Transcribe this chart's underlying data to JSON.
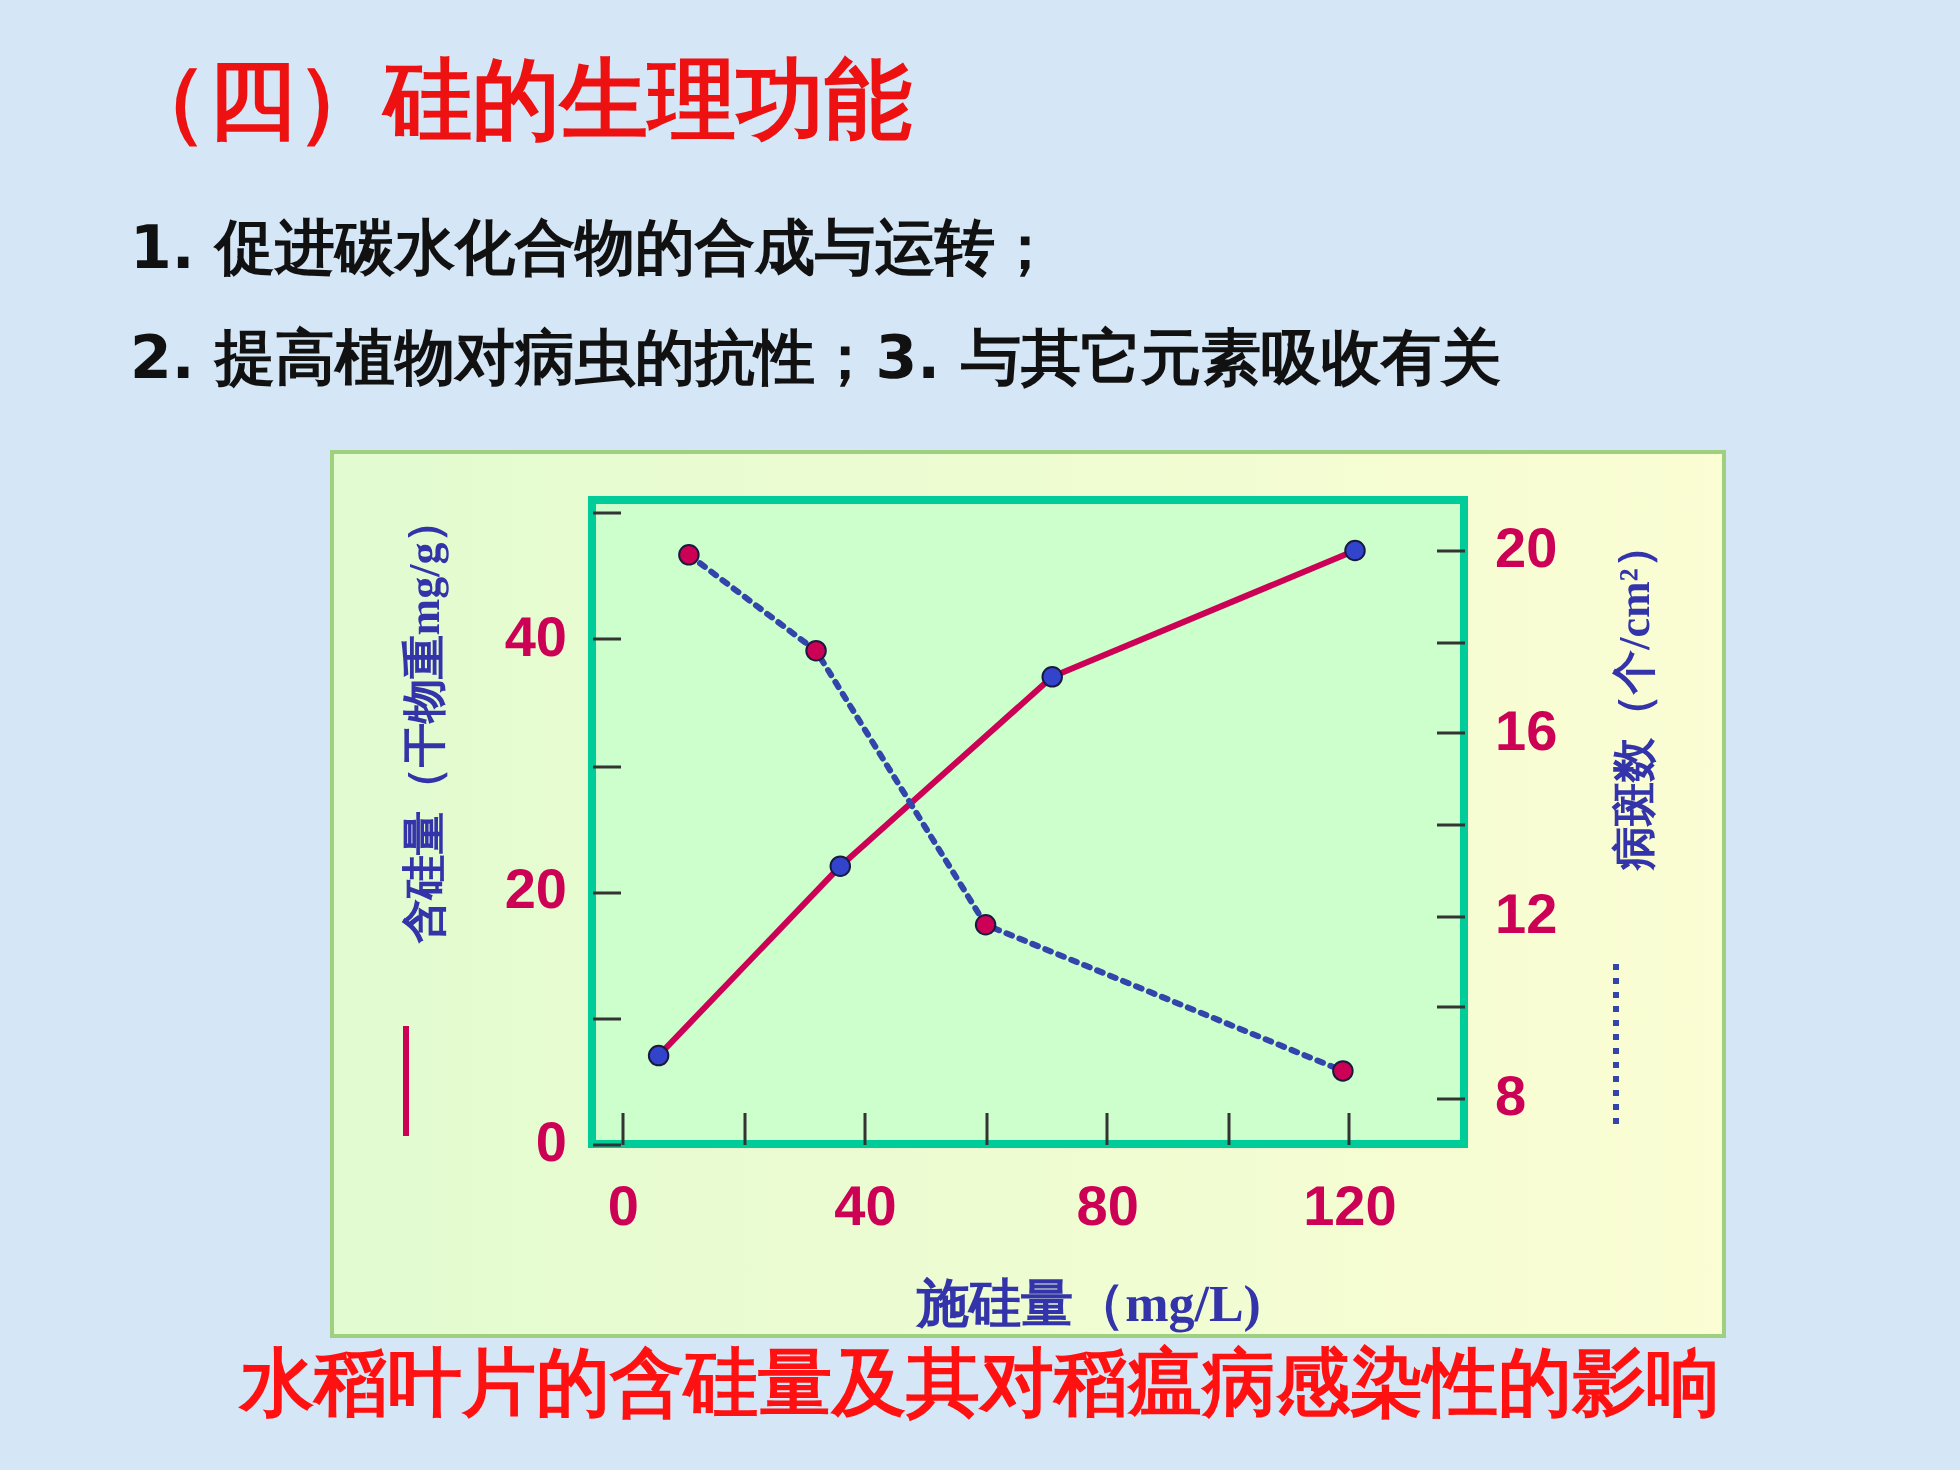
{
  "chart_data": {
    "type": "line",
    "title": "（四）硅的生理功能",
    "annotations": [
      "1. 促进碳水化合物的合成与运转；",
      "2. 提高植物对病虫的抗性；3. 与其它元素吸收有关",
      "水稻叶片的含硅量及其对稻瘟病感染性的影响"
    ],
    "xlabel": "施硅量（mg/L)",
    "ylabel": "含硅量（干物重mg/g）",
    "y2label": "病斑数（个/cm²）",
    "xlim": [
      -5,
      139
    ],
    "xticks": [
      0,
      {
        "value": 20,
        "label": null
      },
      40,
      {
        "value": 60,
        "label": null
      },
      80,
      {
        "value": 100,
        "label": null
      },
      120
    ],
    "ylim": [
      0,
      51
    ],
    "yticks": [
      0,
      {
        "value": 10,
        "label": null
      },
      20,
      {
        "value": 30,
        "label": null
      },
      40,
      {
        "value": 50,
        "label": null
      }
    ],
    "y2lim": [
      7,
      21.1
    ],
    "y2ticks": [
      8,
      {
        "value": 10,
        "label": null
      },
      12,
      {
        "value": 14,
        "label": null
      },
      16,
      {
        "value": 18,
        "label": null
      },
      20
    ],
    "marker": "circle",
    "series": [
      {
        "color": "#cc0055",
        "colors": [
          "#3344cc",
          "#3344cc",
          "#3344cc",
          "#3344cc"
        ],
        "x": [
          6,
          36,
          71,
          121
        ],
        "values": [
          7,
          22,
          37,
          47
        ],
        "line_style": "solid"
      },
      {
        "color": "#3344aa",
        "colors": [
          "#cc0055",
          "#cc0055",
          "#cc0055",
          "#cc0055"
        ],
        "x": [
          11,
          32,
          60,
          119
        ],
        "values": [
          19.9,
          17.8,
          11.8,
          8.6
        ],
        "axis": "y2",
        "line_style": "dotted"
      }
    ]
  }
}
